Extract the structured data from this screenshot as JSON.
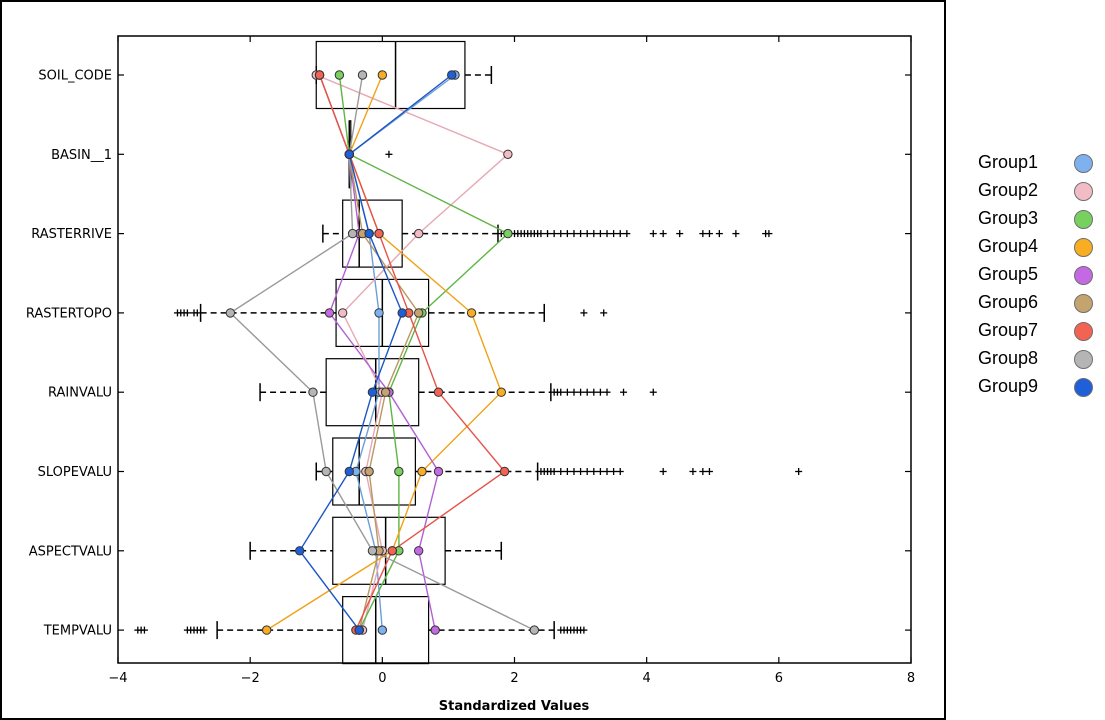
{
  "chart_data": {
    "type": "boxplot",
    "xlabel": "Standardized Values",
    "xlim": [
      -4,
      8
    ],
    "x_ticks": [
      "−4",
      "−2",
      "0",
      "2",
      "4",
      "6",
      "8"
    ],
    "x_tick_values": [
      -4,
      -2,
      0,
      2,
      4,
      6,
      8
    ],
    "categories": [
      "SOIL_CODE",
      "BASIN__1",
      "RASTERRIVE",
      "RASTERTOPO",
      "RAINVALU",
      "SLOPEVALU",
      "ASPECTVALU",
      "TEMPVALU"
    ],
    "boxes": [
      {
        "variable": "SOIL_CODE",
        "whislo": -1.0,
        "q1": -1.0,
        "med": 0.2,
        "q3": 1.25,
        "whishi": 1.65,
        "fliers": []
      },
      {
        "variable": "BASIN__1",
        "whislo": -0.5,
        "q1": -0.5,
        "med": -0.5,
        "q3": -0.5,
        "whishi": -0.5,
        "fliers": [
          0.1
        ]
      },
      {
        "variable": "RASTERRIVE",
        "whislo": -0.9,
        "q1": -0.6,
        "med": -0.35,
        "q3": 0.3,
        "whishi": 1.75,
        "fliers": [
          1.8,
          1.9,
          2.0,
          2.05,
          2.1,
          2.15,
          2.2,
          2.25,
          2.3,
          2.35,
          2.4,
          2.5,
          2.6,
          2.7,
          2.8,
          2.9,
          3.0,
          3.1,
          3.2,
          3.3,
          3.4,
          3.5,
          3.6,
          3.7,
          4.1,
          4.25,
          4.5,
          4.85,
          4.95,
          5.1,
          5.35,
          5.8,
          5.85
        ]
      },
      {
        "variable": "RASTERTOPO",
        "whislo": -2.75,
        "q1": -0.7,
        "med": 0.0,
        "q3": 0.7,
        "whishi": 2.45,
        "fliers": [
          -3.1,
          -3.05,
          -3.0,
          -2.95,
          -2.85,
          -2.8,
          3.05,
          3.35
        ]
      },
      {
        "variable": "RAINVALU",
        "whislo": -1.85,
        "q1": -0.85,
        "med": -0.1,
        "q3": 0.55,
        "whishi": 2.55,
        "fliers": [
          2.6,
          2.65,
          2.7,
          2.8,
          2.9,
          3.0,
          3.1,
          3.2,
          3.3,
          3.4,
          3.65,
          4.1
        ]
      },
      {
        "variable": "SLOPEVALU",
        "whislo": -1.0,
        "q1": -0.75,
        "med": -0.35,
        "q3": 0.5,
        "whishi": 2.35,
        "fliers": [
          2.4,
          2.45,
          2.5,
          2.55,
          2.6,
          2.7,
          2.8,
          2.9,
          3.0,
          3.1,
          3.2,
          3.3,
          3.4,
          3.5,
          3.6,
          4.25,
          4.7,
          4.85,
          4.95,
          6.3
        ]
      },
      {
        "variable": "ASPECTVALU",
        "whislo": -2.0,
        "q1": -0.75,
        "med": 0.05,
        "q3": 0.95,
        "whishi": 1.8,
        "fliers": []
      },
      {
        "variable": "TEMPVALU",
        "whislo": -2.5,
        "q1": -0.6,
        "med": -0.1,
        "q3": 0.7,
        "whishi": 2.6,
        "fliers": [
          -3.7,
          -3.65,
          -3.6,
          -2.95,
          -2.9,
          -2.85,
          -2.8,
          -2.75,
          -2.7,
          2.7,
          2.75,
          2.8,
          2.85,
          2.9,
          2.95,
          3.0,
          3.05
        ]
      }
    ],
    "series": [
      {
        "name": "Group1",
        "color": "#7fb1ee",
        "line_color": "#6c9fd8",
        "values": [
          1.1,
          -0.5,
          -0.2,
          -0.05,
          -0.05,
          -0.4,
          -0.1,
          0.0
        ]
      },
      {
        "name": "Group2",
        "color": "#f2bcc6",
        "line_color": "#e6a8b4",
        "values": [
          -1.0,
          1.9,
          0.55,
          -0.6,
          0.0,
          -0.25,
          0.0,
          -0.3
        ]
      },
      {
        "name": "Group3",
        "color": "#78d05e",
        "line_color": "#5fb544",
        "values": [
          -0.65,
          -0.5,
          1.9,
          0.6,
          0.1,
          0.25,
          0.25,
          -0.35
        ]
      },
      {
        "name": "Group4",
        "color": "#f8ad22",
        "line_color": "#f0a216",
        "values": [
          0.0,
          -0.5,
          -0.05,
          1.35,
          1.8,
          0.6,
          0.15,
          -1.75
        ]
      },
      {
        "name": "Group5",
        "color": "#c36ae2",
        "line_color": "#b260d4",
        "values": [
          -0.95,
          -0.5,
          -0.35,
          -0.8,
          0.1,
          0.85,
          0.55,
          0.8
        ]
      },
      {
        "name": "Group6",
        "color": "#c4a46e",
        "line_color": "#b99760",
        "values": [
          -0.95,
          -0.5,
          -0.3,
          0.55,
          0.05,
          -0.2,
          -0.05,
          -0.35
        ]
      },
      {
        "name": "Group7",
        "color": "#f36353",
        "line_color": "#e6534a",
        "values": [
          -0.95,
          -0.5,
          -0.05,
          0.4,
          0.85,
          1.85,
          0.15,
          -0.4
        ]
      },
      {
        "name": "Group8",
        "color": "#b5b5b5",
        "line_color": "#9a9a9a",
        "values": [
          -0.3,
          -0.5,
          -0.45,
          -2.3,
          -1.05,
          -0.85,
          -0.15,
          2.3
        ]
      },
      {
        "name": "Group9",
        "color": "#1f5fd8",
        "line_color": "#1b56c4",
        "values": [
          1.05,
          -0.5,
          -0.2,
          0.3,
          -0.15,
          -0.5,
          -1.25,
          -0.35
        ]
      }
    ]
  }
}
